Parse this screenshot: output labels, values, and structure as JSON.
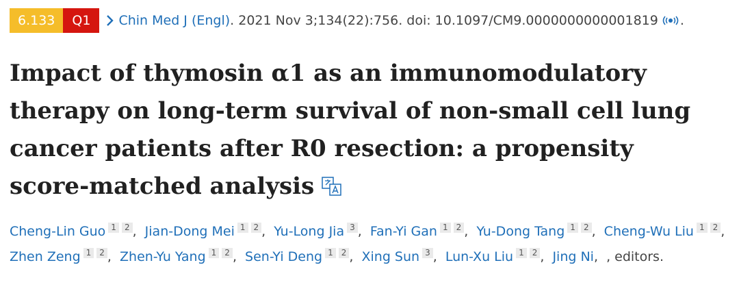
{
  "badges": {
    "impact_factor": "6.133",
    "quartile": "Q1"
  },
  "citation": {
    "journal": "Chin Med J (Engl)",
    "details": ". 2021 Nov 3;134(22):756. doi: 10.1097/CM9.0000000000001819",
    "end": "."
  },
  "title_lines": [
    "Impact of thymosin α1 as an immunomodulatory",
    "therapy on long-term survival of non-small cell lung",
    "cancer patients after R0 resection: a propensity",
    "score-matched analysis"
  ],
  "authors": [
    {
      "name": "Cheng-Lin Guo",
      "affiliations": [
        "1",
        "2"
      ]
    },
    {
      "name": "Jian-Dong Mei",
      "affiliations": [
        "1",
        "2"
      ]
    },
    {
      "name": "Yu-Long Jia",
      "affiliations": [
        "3"
      ]
    },
    {
      "name": "Fan-Yi Gan",
      "affiliations": [
        "1",
        "2"
      ]
    },
    {
      "name": "Yu-Dong Tang",
      "affiliations": [
        "1",
        "2"
      ]
    },
    {
      "name": "Cheng-Wu Liu",
      "affiliations": [
        "1",
        "2"
      ]
    },
    {
      "name": "Zhen Zeng",
      "affiliations": [
        "1",
        "2"
      ]
    },
    {
      "name": "Zhen-Yu Yang",
      "affiliations": [
        "1",
        "2"
      ]
    },
    {
      "name": "Sen-Yi Deng",
      "affiliations": [
        "1",
        "2"
      ]
    },
    {
      "name": "Xing Sun",
      "affiliations": [
        "3"
      ]
    },
    {
      "name": "Lun-Xu Liu",
      "affiliations": [
        "1",
        "2"
      ]
    },
    {
      "name": "Jing Ni",
      "affiliations": []
    }
  ],
  "authors_suffix": ", editors."
}
